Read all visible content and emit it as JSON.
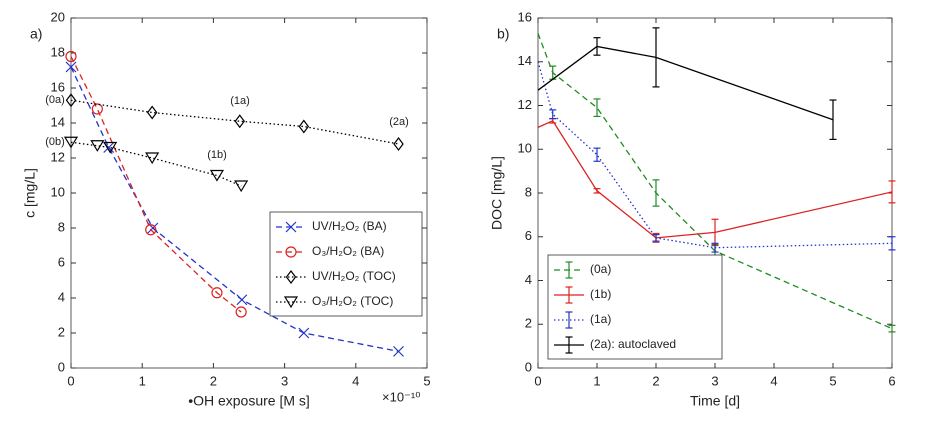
{
  "chart_data": [
    {
      "type": "line",
      "panel_label": "a)",
      "x_label": "•OH exposure [M s]",
      "y_label": "c [mg/L]",
      "x_multiplier": "×10⁻¹⁰",
      "xlim": [
        0,
        5
      ],
      "ylim": [
        0,
        20
      ],
      "xticks": [
        0,
        1,
        2,
        3,
        4,
        5
      ],
      "yticks": [
        0,
        2,
        4,
        6,
        8,
        10,
        12,
        14,
        16,
        18,
        20
      ],
      "grid": false,
      "legend": "center right",
      "annotations": [
        "(0a)",
        "(0b)",
        "(1a)",
        "(1b)",
        "(2a)"
      ],
      "series": [
        {
          "name": "UV/H₂O₂ (BA)",
          "color": "#2233cc",
          "marker": "x",
          "dash": "dashed",
          "x": [
            0,
            0.53,
            1.15,
            2.4,
            3.27,
            4.6
          ],
          "values": [
            17.2,
            12.6,
            8.0,
            3.9,
            2.0,
            0.95
          ]
        },
        {
          "name": "O₃/H₂O₂ (BA)",
          "color": "#dd2222",
          "marker": "o",
          "dash": "dashed",
          "x": [
            0,
            0.37,
            1.12,
            2.05,
            2.39
          ],
          "values": [
            17.8,
            14.8,
            7.9,
            4.3,
            3.2
          ]
        },
        {
          "name": "UV/H₂O₂ (TOC)",
          "color": "#000000",
          "marker": "d",
          "dash": "dotted",
          "x": [
            0,
            1.14,
            2.37,
            3.27,
            4.6
          ],
          "values": [
            15.3,
            14.6,
            14.1,
            13.8,
            12.8
          ]
        },
        {
          "name": "O₃/H₂O₂ (TOC)",
          "color": "#000000",
          "marker": "v",
          "dash": "dotted",
          "x": [
            0,
            0.37,
            0.55,
            1.14,
            2.05,
            2.39
          ],
          "values": [
            12.9,
            12.7,
            12.6,
            12.0,
            11.0,
            10.4
          ]
        }
      ]
    },
    {
      "type": "errorbar",
      "panel_label": "b)",
      "x_label": "Time [d]",
      "y_label": "DOC [mg/L]",
      "xlim": [
        0,
        6
      ],
      "ylim": [
        0,
        16
      ],
      "xticks": [
        0,
        1,
        2,
        3,
        4,
        5,
        6
      ],
      "yticks": [
        0,
        2,
        4,
        6,
        8,
        10,
        12,
        14,
        16
      ],
      "grid": false,
      "legend": "lower left",
      "series": [
        {
          "name": "(0a)",
          "color": "#228b22",
          "dash": "dashed",
          "x": [
            0,
            0.25,
            1,
            2,
            3,
            6
          ],
          "values": [
            15.3,
            13.5,
            11.9,
            8.0,
            5.35,
            1.8
          ],
          "errors": [
            null,
            0.3,
            0.4,
            0.6,
            0.3,
            0.15
          ]
        },
        {
          "name": "(1b)",
          "color": "#dd2222",
          "dash": "solid",
          "x": [
            0,
            0.25,
            1,
            2,
            3,
            6
          ],
          "values": [
            11.0,
            11.3,
            8.1,
            5.95,
            6.2,
            8.05
          ],
          "errors": [
            null,
            0.1,
            0.1,
            0.2,
            0.6,
            0.5
          ]
        },
        {
          "name": "(1a)",
          "color": "#2233cc",
          "dash": "dotted",
          "x": [
            0,
            0.25,
            1,
            2,
            3,
            6
          ],
          "values": [
            14.0,
            11.6,
            9.75,
            5.95,
            5.5,
            5.7
          ],
          "errors": [
            null,
            0.2,
            0.3,
            0.15,
            0.2,
            0.3
          ]
        },
        {
          "name": "(2a): autoclaved",
          "color": "#000000",
          "dash": "solid",
          "x": [
            0,
            1,
            2,
            5
          ],
          "values": [
            12.7,
            14.7,
            14.2,
            11.35
          ],
          "errors": [
            null,
            0.4,
            1.35,
            0.9
          ]
        }
      ]
    }
  ]
}
